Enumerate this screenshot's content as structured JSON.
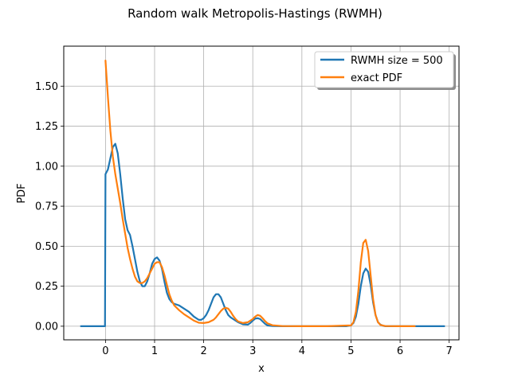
{
  "chart_data": {
    "type": "line",
    "title": "Random walk Metropolis-Hastings (RWMH)",
    "xlabel": "x",
    "ylabel": "PDF",
    "xlim": [
      -0.85,
      7.2
    ],
    "ylim": [
      -0.085,
      1.75
    ],
    "grid": true,
    "legend_position": "top-right",
    "xticks": [
      0,
      1,
      2,
      3,
      4,
      5,
      6,
      7
    ],
    "xtick_labels": [
      "0",
      "1",
      "2",
      "3",
      "4",
      "5",
      "6",
      "7"
    ],
    "yticks": [
      0,
      0.25,
      0.5,
      0.75,
      1.0,
      1.25,
      1.5
    ],
    "ytick_labels": [
      "0.00",
      "0.25",
      "0.50",
      "0.75",
      "1.00",
      "1.25",
      "1.50"
    ],
    "series": [
      {
        "name": "RWMH size = 500",
        "color": "#1f77b4",
        "x": [
          -0.5,
          -0.01,
          0.0,
          0.0,
          0.05,
          0.1,
          0.15,
          0.2,
          0.25,
          0.3,
          0.35,
          0.4,
          0.45,
          0.5,
          0.55,
          0.6,
          0.65,
          0.7,
          0.75,
          0.8,
          0.85,
          0.9,
          0.95,
          1.0,
          1.05,
          1.1,
          1.15,
          1.2,
          1.25,
          1.3,
          1.35,
          1.4,
          1.5,
          1.6,
          1.7,
          1.8,
          1.9,
          1.95,
          2.0,
          2.05,
          2.1,
          2.15,
          2.2,
          2.25,
          2.3,
          2.35,
          2.4,
          2.45,
          2.5,
          2.55,
          2.6,
          2.65,
          2.7,
          2.8,
          2.9,
          2.95,
          3.0,
          3.05,
          3.1,
          3.15,
          3.2,
          3.25,
          3.3,
          3.4,
          3.6,
          4.0,
          4.5,
          4.9,
          5.0,
          5.05,
          5.1,
          5.15,
          5.2,
          5.25,
          5.3,
          5.35,
          5.4,
          5.45,
          5.5,
          5.55,
          5.6,
          5.65,
          5.7,
          5.8,
          6.0,
          6.5,
          6.9
        ],
        "y": [
          0.0,
          0.0,
          0.95,
          0.95,
          0.98,
          1.05,
          1.12,
          1.14,
          1.08,
          0.95,
          0.8,
          0.67,
          0.6,
          0.57,
          0.5,
          0.42,
          0.34,
          0.28,
          0.25,
          0.25,
          0.28,
          0.33,
          0.39,
          0.42,
          0.43,
          0.41,
          0.36,
          0.28,
          0.21,
          0.17,
          0.15,
          0.14,
          0.13,
          0.11,
          0.09,
          0.06,
          0.04,
          0.04,
          0.05,
          0.07,
          0.1,
          0.14,
          0.18,
          0.2,
          0.2,
          0.18,
          0.14,
          0.1,
          0.07,
          0.055,
          0.045,
          0.035,
          0.025,
          0.012,
          0.01,
          0.02,
          0.035,
          0.048,
          0.05,
          0.045,
          0.03,
          0.015,
          0.005,
          0.001,
          0.0,
          0.0,
          0.0,
          0.0,
          0.005,
          0.02,
          0.06,
          0.14,
          0.25,
          0.33,
          0.36,
          0.34,
          0.26,
          0.15,
          0.07,
          0.025,
          0.01,
          0.003,
          0.0,
          0.0,
          0.0,
          0.0,
          0.0
        ]
      },
      {
        "name": "exact PDF",
        "color": "#ff7f0e",
        "x": [
          0.0,
          0.05,
          0.1,
          0.15,
          0.2,
          0.25,
          0.3,
          0.35,
          0.4,
          0.45,
          0.5,
          0.55,
          0.6,
          0.65,
          0.7,
          0.75,
          0.8,
          0.85,
          0.9,
          0.95,
          1.0,
          1.05,
          1.1,
          1.15,
          1.2,
          1.25,
          1.3,
          1.35,
          1.4,
          1.5,
          1.6,
          1.7,
          1.8,
          1.9,
          2.0,
          2.1,
          2.2,
          2.25,
          2.3,
          2.35,
          2.4,
          2.45,
          2.5,
          2.55,
          2.6,
          2.65,
          2.7,
          2.8,
          2.9,
          3.0,
          3.05,
          3.1,
          3.15,
          3.2,
          3.25,
          3.3,
          3.4,
          3.6,
          4.0,
          4.5,
          5.0,
          5.05,
          5.1,
          5.15,
          5.2,
          5.25,
          5.3,
          5.35,
          5.4,
          5.45,
          5.5,
          5.55,
          5.6,
          5.7,
          6.0,
          6.3
        ],
        "y": [
          1.66,
          1.43,
          1.22,
          1.06,
          0.95,
          0.86,
          0.77,
          0.67,
          0.58,
          0.49,
          0.42,
          0.36,
          0.31,
          0.28,
          0.27,
          0.27,
          0.28,
          0.3,
          0.33,
          0.36,
          0.39,
          0.4,
          0.4,
          0.37,
          0.32,
          0.26,
          0.2,
          0.16,
          0.13,
          0.1,
          0.075,
          0.055,
          0.035,
          0.022,
          0.02,
          0.025,
          0.04,
          0.055,
          0.075,
          0.095,
          0.11,
          0.115,
          0.11,
          0.09,
          0.065,
          0.045,
          0.03,
          0.02,
          0.025,
          0.045,
          0.06,
          0.07,
          0.065,
          0.05,
          0.032,
          0.018,
          0.006,
          0.001,
          0.0,
          0.0,
          0.005,
          0.025,
          0.09,
          0.22,
          0.4,
          0.52,
          0.54,
          0.47,
          0.32,
          0.17,
          0.07,
          0.025,
          0.008,
          0.001,
          0.0,
          0.0
        ]
      }
    ]
  }
}
